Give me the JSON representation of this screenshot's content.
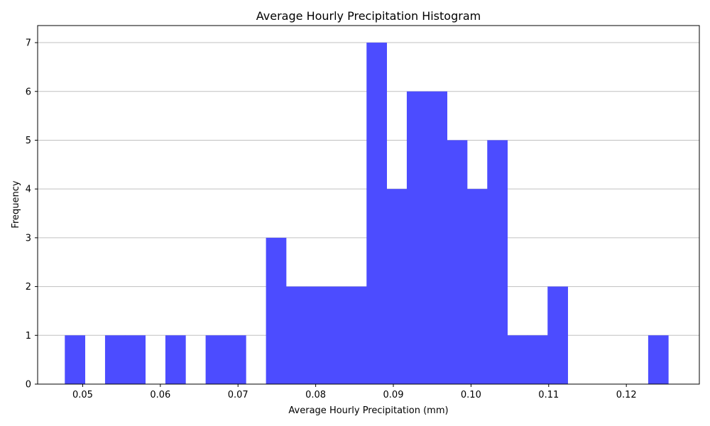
{
  "chart_data": {
    "type": "bar",
    "title": "Average Hourly Precipitation Histogram",
    "xlabel": "Average Hourly Precipitation (mm)",
    "ylabel": "Frequency",
    "xlim": [
      0.0442,
      0.1294
    ],
    "ylim": [
      0,
      7.35
    ],
    "x_ticks": [
      0.05,
      0.06,
      0.07,
      0.08,
      0.09,
      0.1,
      0.11,
      0.12
    ],
    "x_tick_labels": [
      "0.05",
      "0.06",
      "0.07",
      "0.08",
      "0.09",
      "0.10",
      "0.11",
      "0.12"
    ],
    "y_ticks": [
      0,
      1,
      2,
      3,
      4,
      5,
      6,
      7
    ],
    "y_tick_labels": [
      "0",
      "1",
      "2",
      "3",
      "4",
      "5",
      "6",
      "7"
    ],
    "grid": "y",
    "bar_color": "#4c4cff",
    "bins": {
      "start": 0.0477,
      "width": 0.00259,
      "counts": [
        1,
        0,
        1,
        1,
        0,
        1,
        0,
        1,
        1,
        0,
        3,
        2,
        2,
        2,
        2,
        7,
        4,
        6,
        6,
        5,
        4,
        5,
        1,
        1,
        2,
        0,
        0,
        0,
        0,
        1
      ]
    }
  }
}
